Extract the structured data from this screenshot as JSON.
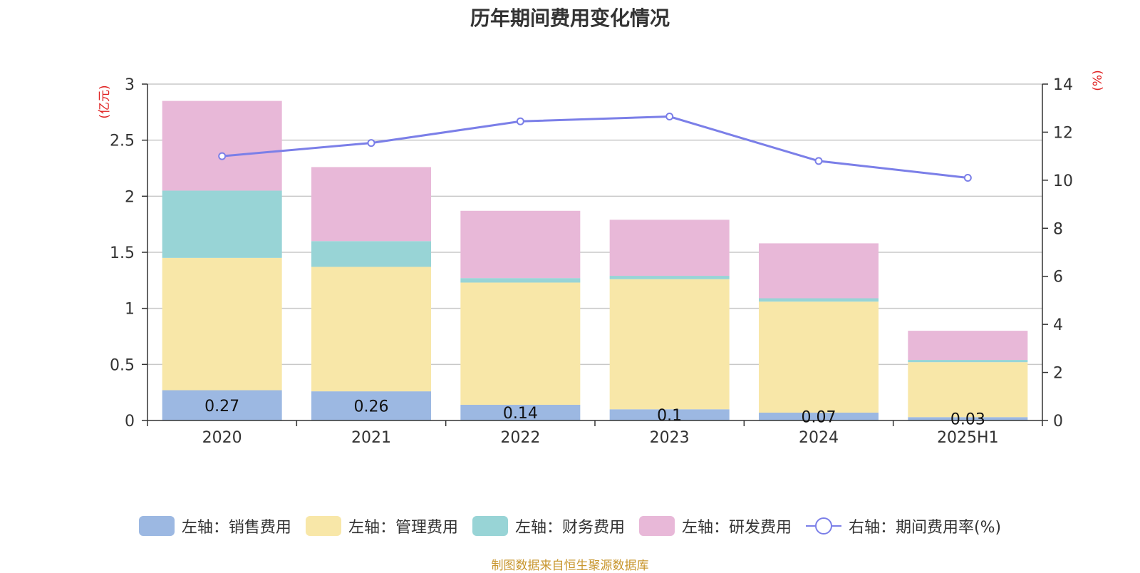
{
  "title": "历年期间费用变化情况",
  "footer": "制图数据来自恒生聚源数据库",
  "chart_data": {
    "type": "bar",
    "stacked": true,
    "categories": [
      "2020",
      "2021",
      "2022",
      "2023",
      "2024",
      "2025H1"
    ],
    "y_left": {
      "unit": "(亿元)",
      "range": [
        0,
        3
      ],
      "ticks": [
        "0",
        "0.5",
        "1",
        "1.5",
        "2",
        "2.5",
        "3"
      ]
    },
    "y_right": {
      "unit": "(%)",
      "range": [
        0,
        14
      ],
      "ticks": [
        "0",
        "2",
        "4",
        "6",
        "8",
        "10",
        "12",
        "14"
      ]
    },
    "grid": true,
    "series": [
      {
        "name": "左轴：销售费用",
        "type": "bar",
        "color": "#9cb8e2",
        "values": [
          0.27,
          0.26,
          0.14,
          0.1,
          0.07,
          0.03
        ],
        "labels": [
          "0.27",
          "0.26",
          "0.14",
          "0.1",
          "0.07",
          "0.03"
        ]
      },
      {
        "name": "左轴：管理费用",
        "type": "bar",
        "color": "#f8e7a8",
        "values": [
          1.18,
          1.11,
          1.09,
          1.16,
          0.99,
          0.49
        ]
      },
      {
        "name": "左轴：财务费用",
        "type": "bar",
        "color": "#98d4d6",
        "values": [
          0.6,
          0.23,
          0.04,
          0.03,
          0.03,
          0.02
        ]
      },
      {
        "name": "左轴：研发费用",
        "type": "bar",
        "color": "#e8b8d8",
        "values": [
          0.8,
          0.66,
          0.6,
          0.5,
          0.49,
          0.26
        ]
      },
      {
        "name": "右轴：期间费用率(%)",
        "type": "line",
        "color": "#7b7fe8",
        "values": [
          11.0,
          11.55,
          12.45,
          12.65,
          10.8,
          10.1
        ]
      }
    ],
    "legend_position": "bottom"
  }
}
